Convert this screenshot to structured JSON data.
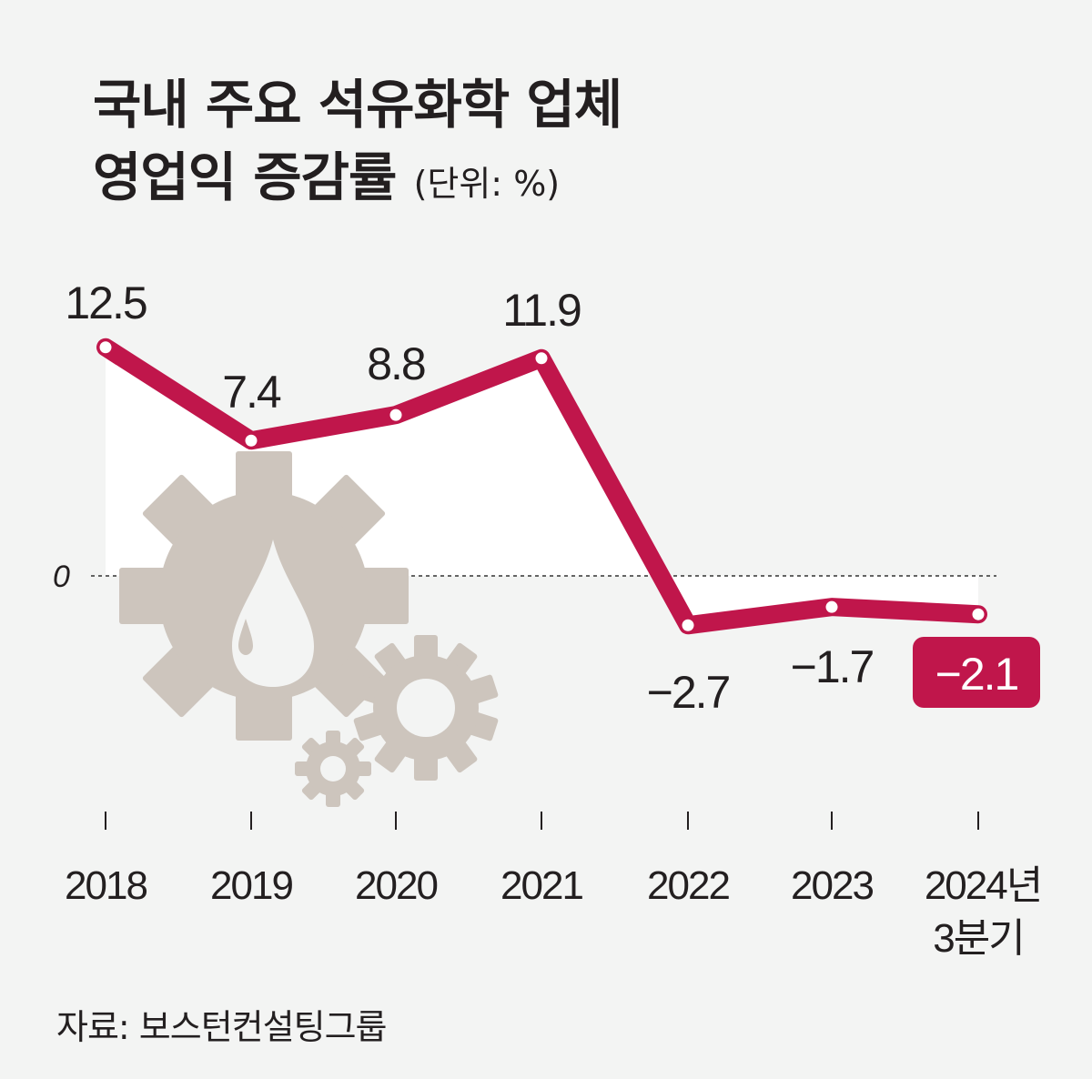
{
  "title_line1": "국내 주요 석유화학 업체",
  "title_line2": "영업익 증감률",
  "unit": "(단위: %)",
  "source": "자료: 보스턴컨설팅그룹",
  "colors": {
    "line": "#c0164b",
    "background": "#f3f4f3",
    "fill": "#ffffff",
    "gear": "#cdc5bd",
    "text": "#231f20"
  },
  "chart_data": {
    "type": "line",
    "categories": [
      "2018",
      "2019",
      "2020",
      "2021",
      "2022",
      "2023",
      "2024년 3분기"
    ],
    "category_labels": [
      [
        "2018"
      ],
      [
        "2019"
      ],
      [
        "2020"
      ],
      [
        "2021"
      ],
      [
        "2022"
      ],
      [
        "2023"
      ],
      [
        "2024년",
        "3분기"
      ]
    ],
    "values": [
      12.5,
      7.4,
      8.8,
      11.9,
      -2.7,
      -1.7,
      -2.1
    ],
    "value_labels": [
      "12.5",
      "7.4",
      "8.8",
      "11.9",
      "−2.7",
      "−1.7",
      "−2.1"
    ],
    "highlight_index": 6,
    "zero_label": "0",
    "zero_line": "dashed",
    "grid": false,
    "legend": "none",
    "ylim": [
      -4.5,
      15
    ]
  }
}
